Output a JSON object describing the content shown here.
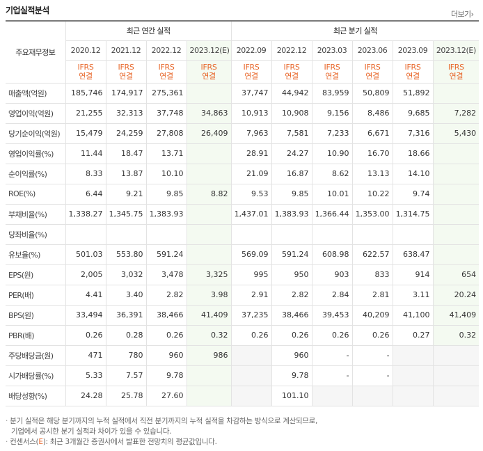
{
  "header": {
    "title": "기업실적분석",
    "more_label": "더보기",
    "more_arrow": "›"
  },
  "table": {
    "corner_label": "주요재무정보",
    "annual_group": "최근 연간 실적",
    "quarter_group": "최근 분기 실적",
    "periods": [
      "2020.12",
      "2021.12",
      "2022.12",
      "2023.12(E)",
      "2022.09",
      "2022.12",
      "2023.03",
      "2023.06",
      "2023.09",
      "2023.12(E)"
    ],
    "standard_top": "IFRS",
    "standard_bottom": "연결",
    "rows": [
      {
        "label": "매출액(억원)",
        "values": [
          "185,746",
          "174,917",
          "275,361",
          "",
          "37,747",
          "44,942",
          "83,959",
          "50,809",
          "51,892",
          ""
        ]
      },
      {
        "label": "영업이익(억원)",
        "values": [
          "21,255",
          "32,313",
          "37,748",
          "34,863",
          "10,913",
          "10,908",
          "9,156",
          "8,486",
          "9,685",
          "7,282"
        ]
      },
      {
        "label": "당기순이익(억원)",
        "values": [
          "15,479",
          "24,259",
          "27,808",
          "26,409",
          "7,963",
          "7,581",
          "7,233",
          "6,671",
          "7,316",
          "5,430"
        ]
      },
      {
        "label": "영업이익률(%)",
        "values": [
          "11.44",
          "18.47",
          "13.71",
          "",
          "28.91",
          "24.27",
          "10.90",
          "16.70",
          "18.66",
          ""
        ]
      },
      {
        "label": "순이익률(%)",
        "values": [
          "8.33",
          "13.87",
          "10.10",
          "",
          "21.09",
          "16.87",
          "8.62",
          "13.13",
          "14.10",
          ""
        ]
      },
      {
        "label": "ROE(%)",
        "values": [
          "6.44",
          "9.21",
          "9.85",
          "8.82",
          "9.53",
          "9.85",
          "10.01",
          "10.22",
          "9.74",
          ""
        ]
      },
      {
        "label": "부채비율(%)",
        "values": [
          "1,338.27",
          "1,345.75",
          "1,383.93",
          "",
          "1,437.01",
          "1,383.93",
          "1,366.44",
          "1,353.00",
          "1,314.75",
          ""
        ]
      },
      {
        "label": "당좌비율(%)",
        "values": [
          "",
          "",
          "",
          "",
          "",
          "",
          "",
          "",
          "",
          ""
        ]
      },
      {
        "label": "유보율(%)",
        "values": [
          "501.03",
          "553.80",
          "591.24",
          "",
          "569.09",
          "591.24",
          "608.98",
          "622.57",
          "638.47",
          ""
        ]
      },
      {
        "label": "EPS(원)",
        "values": [
          "2,005",
          "3,032",
          "3,478",
          "3,325",
          "995",
          "950",
          "903",
          "833",
          "914",
          "654"
        ]
      },
      {
        "label": "PER(배)",
        "values": [
          "4.41",
          "3.40",
          "2.82",
          "3.98",
          "2.91",
          "2.82",
          "2.84",
          "2.81",
          "3.11",
          "20.24"
        ]
      },
      {
        "label": "BPS(원)",
        "values": [
          "33,494",
          "36,391",
          "38,466",
          "41,409",
          "37,235",
          "38,466",
          "39,453",
          "40,209",
          "41,100",
          "41,409"
        ]
      },
      {
        "label": "PBR(배)",
        "values": [
          "0.26",
          "0.28",
          "0.26",
          "0.32",
          "0.26",
          "0.26",
          "0.26",
          "0.26",
          "0.27",
          "0.32"
        ]
      },
      {
        "label": "주당배당금(원)",
        "values": [
          "471",
          "780",
          "960",
          "986",
          "",
          "960",
          "-",
          "-",
          "",
          ""
        ]
      },
      {
        "label": "시가배당률(%)",
        "values": [
          "5.33",
          "7.57",
          "9.78",
          "",
          "",
          "9.78",
          "-",
          "-",
          "",
          ""
        ]
      },
      {
        "label": "배당성향(%)",
        "values": [
          "24.28",
          "25.78",
          "27.60",
          "",
          "",
          "101.10",
          "",
          "",
          "",
          ""
        ]
      }
    ],
    "gray_cells": [
      [
        13,
        4
      ],
      [
        13,
        8
      ],
      [
        13,
        9
      ],
      [
        14,
        4
      ],
      [
        14,
        8
      ],
      [
        14,
        9
      ],
      [
        15,
        4
      ],
      [
        15,
        6
      ],
      [
        15,
        7
      ],
      [
        15,
        8
      ],
      [
        15,
        9
      ]
    ],
    "section_breaks": [
      3,
      6,
      9,
      13
    ]
  },
  "notes": {
    "bullet": "·",
    "line1": "분기 실적은 해당 분기까지의 누적 실적에서 직전 분기까지의 누적 실적을 차감하는 방식으로 계산되므로,",
    "line2": "기업에서 공시한 분기 실적과 차이가 있을 수 있습니다.",
    "line3_prefix": "컨센서스(",
    "line3_e": "E",
    "line3_suffix": "): 최근 3개월간 증권사에서 발표한 전망치의 평균값입니다."
  },
  "colors": {
    "accent_orange": "#e8682c",
    "estimate_bg": "#f4faf1",
    "empty_bg": "#f6f6f6"
  }
}
